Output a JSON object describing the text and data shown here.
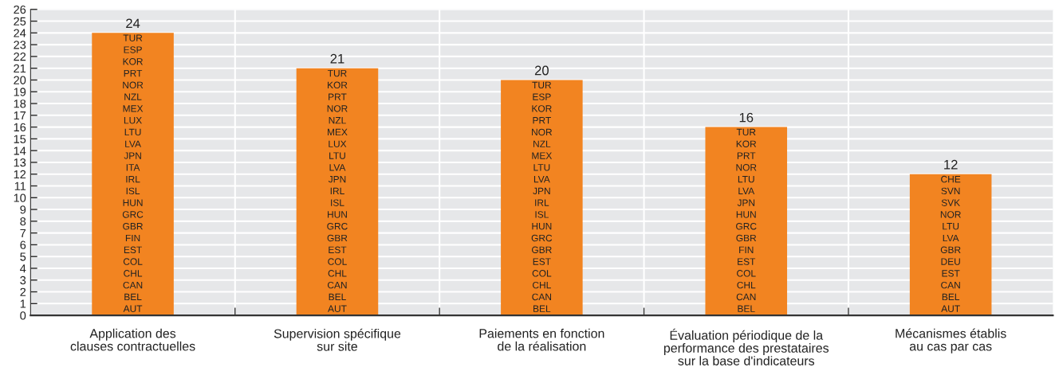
{
  "chart_data": {
    "type": "bar",
    "categories": [
      "Application des\nclauses contractuelles",
      "Supervision spécifique\nsur site",
      "Paiements en fonction\nde la réalisation",
      "Évaluation périodique de la\nperformance des prestataires\nsur la base d'indicateurs",
      "Mécanismes établis\nau cas par cas"
    ],
    "values": [
      24,
      21,
      20,
      16,
      12
    ],
    "color": "#f28421",
    "data_labels": true,
    "ylim": [
      0,
      26
    ],
    "yticks": [
      0,
      1,
      2,
      3,
      4,
      5,
      6,
      7,
      8,
      9,
      10,
      11,
      12,
      13,
      14,
      15,
      16,
      17,
      18,
      19,
      20,
      21,
      22,
      23,
      24,
      25,
      26
    ],
    "grid": true,
    "annotations": [
      "TUR",
      "ESP",
      "KOR",
      "PRT",
      "NOR",
      "NZL",
      "MEX",
      "LUX",
      "LTU",
      "LVA",
      "JPN",
      "ITA",
      "IRL",
      "ISL",
      "HUN",
      "GRC",
      "GBR",
      "FIN",
      "EST",
      "COL",
      "CHL",
      "CAN",
      "BEL",
      "AUT",
      "TUR",
      "KOR",
      "PRT",
      "NOR",
      "NZL",
      "MEX",
      "LUX",
      "LTU",
      "LVA",
      "JPN",
      "IRL",
      "ISL",
      "HUN",
      "GRC",
      "GBR",
      "EST",
      "COL",
      "CHL",
      "CAN",
      "BEL",
      "AUT",
      "TUR",
      "ESP",
      "KOR",
      "PRT",
      "NOR",
      "NZL",
      "MEX",
      "LTU",
      "LVA",
      "JPN",
      "IRL",
      "ISL",
      "HUN",
      "GRC",
      "GBR",
      "EST",
      "COL",
      "CHL",
      "CAN",
      "BEL",
      "TUR",
      "KOR",
      "PRT",
      "NOR",
      "LTU",
      "LVA",
      "JPN",
      "HUN",
      "GRC",
      "GBR",
      "FIN",
      "EST",
      "COL",
      "CHL",
      "CAN",
      "BEL",
      "CHE",
      "SVN",
      "SVK",
      "NOR",
      "LTU",
      "LVA",
      "GBR",
      "DEU",
      "EST",
      "CAN",
      "BEL",
      "AUT"
    ]
  }
}
